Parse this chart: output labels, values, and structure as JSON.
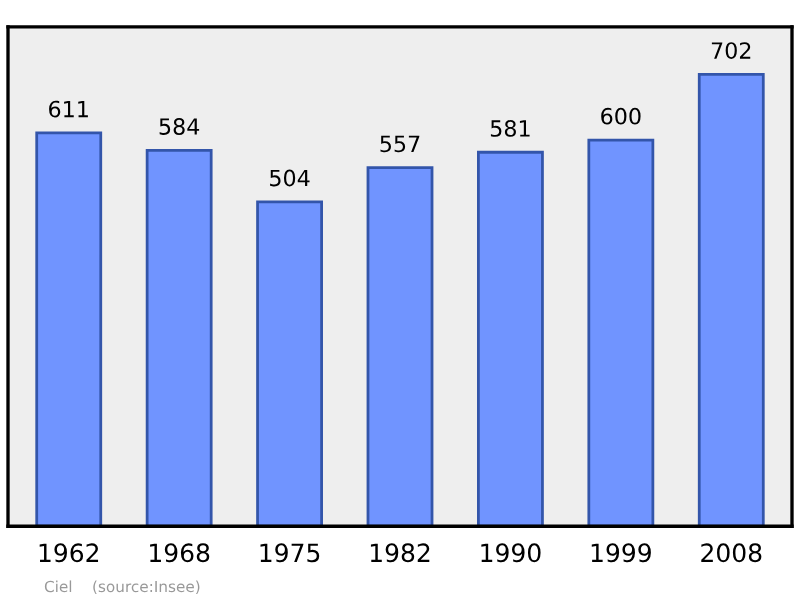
{
  "chart_data": {
    "type": "bar",
    "categories": [
      "1962",
      "1968",
      "1975",
      "1982",
      "1990",
      "1999",
      "2008"
    ],
    "values": [
      611,
      584,
      504,
      557,
      581,
      600,
      702
    ],
    "color": "#7094ff",
    "data_labels": true,
    "grid": false,
    "legend": false,
    "annotations": [
      "Ciel    (source:Insee)"
    ]
  }
}
